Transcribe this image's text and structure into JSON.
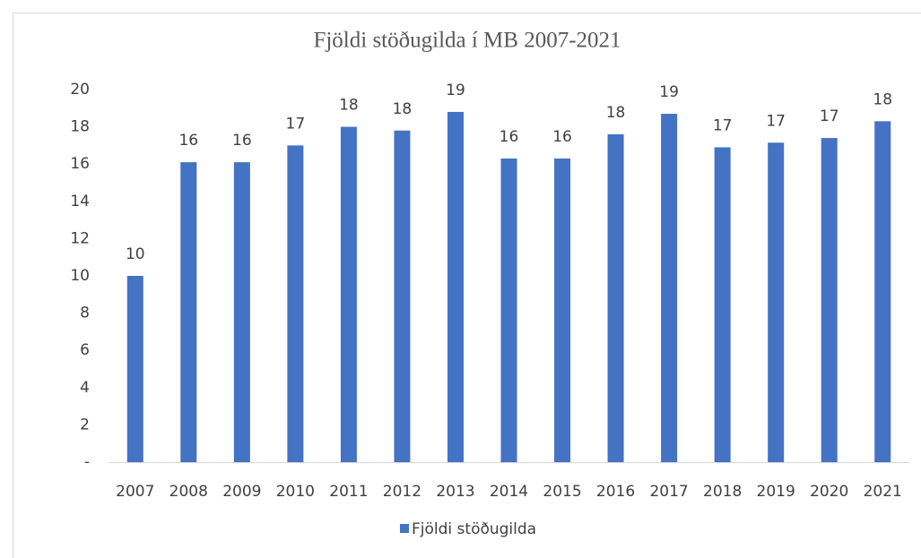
{
  "chart_data": {
    "type": "bar",
    "title": "Fjöldi stöðugilda í MB 2007-2021",
    "categories": [
      "2007",
      "2008",
      "2009",
      "2010",
      "2011",
      "2012",
      "2013",
      "2014",
      "2015",
      "2016",
      "2017",
      "2018",
      "2019",
      "2020",
      "2021"
    ],
    "series": [
      {
        "name": "Fjöldi stöðugilda",
        "color": "#4472c4",
        "values": [
          10,
          16.1,
          16.1,
          17,
          18,
          17.8,
          18.8,
          16.3,
          16.3,
          17.6,
          18.7,
          16.9,
          17.15,
          17.4,
          18.3
        ],
        "value_labels": [
          "10",
          "16",
          "16",
          "17",
          "18",
          "18",
          "19",
          "16",
          "16",
          "18",
          "19",
          "17",
          "17",
          "17",
          "18"
        ]
      }
    ],
    "ylim": [
      0,
      20
    ],
    "yticks": [
      {
        "value": 0,
        "label": "-"
      },
      2,
      4,
      6,
      8,
      10,
      12,
      14,
      16,
      18,
      20
    ],
    "grid": false,
    "legend": "bottom"
  }
}
